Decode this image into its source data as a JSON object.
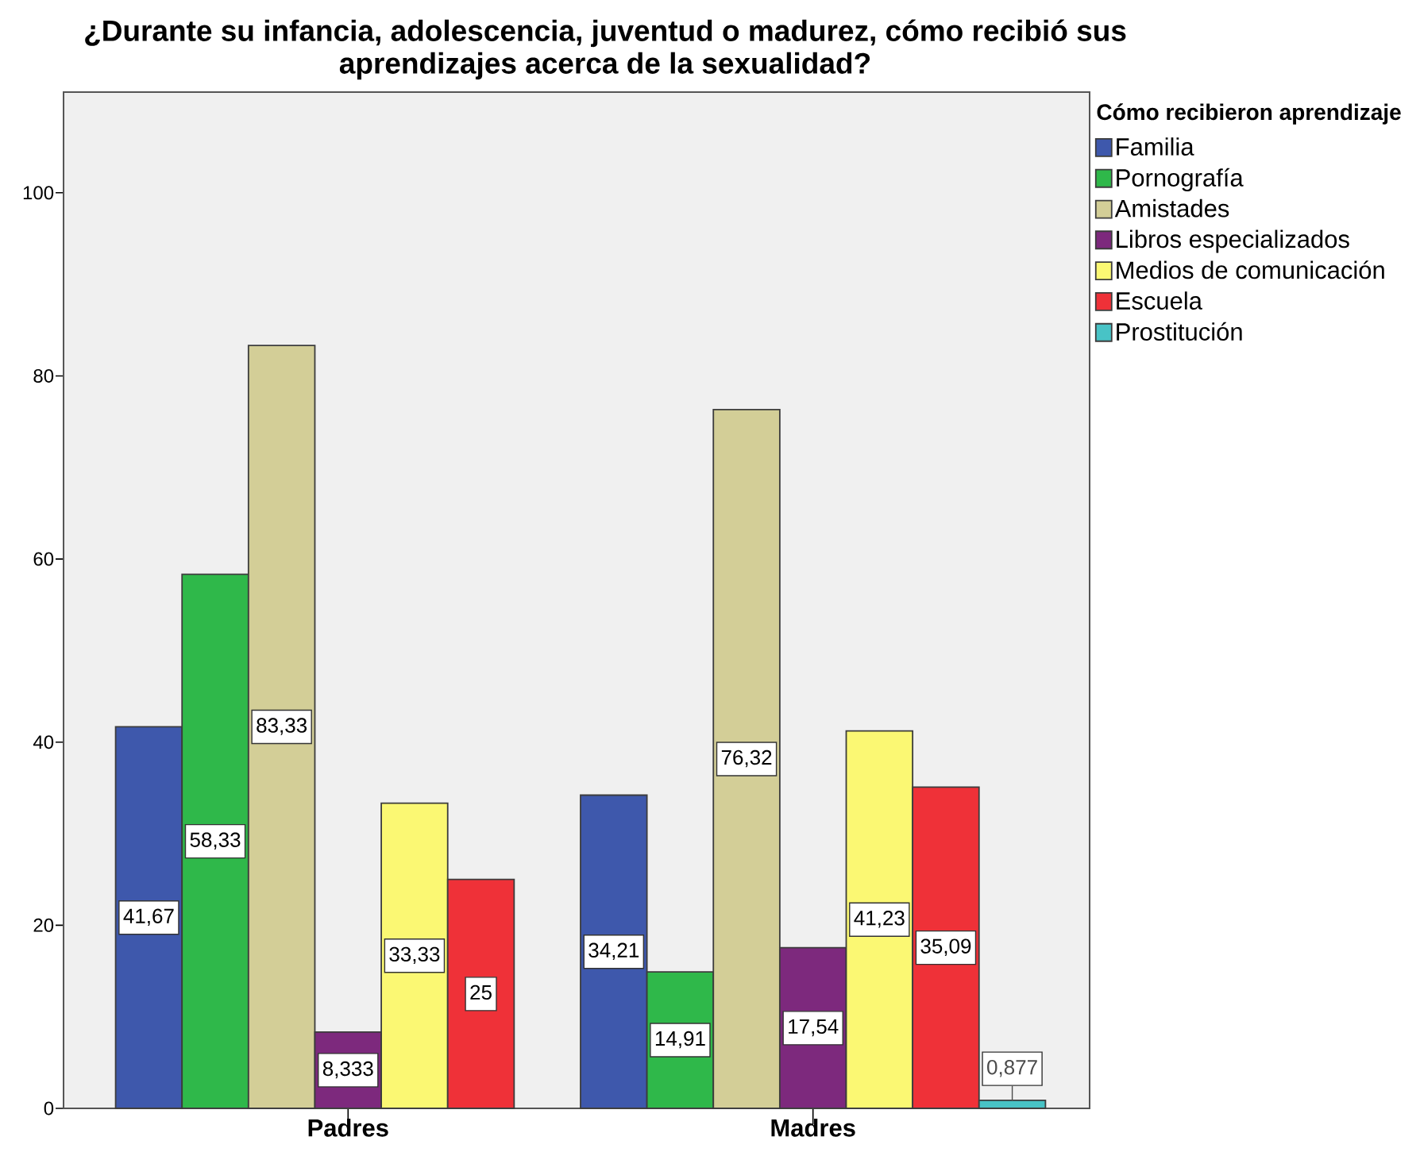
{
  "chart_data": {
    "type": "bar",
    "title": "¿Durante su infancia, adolescencia, juventud o madurez, cómo recibió sus aprendizajes acerca de la sexualidad?",
    "legend_title": "Cómo recibieron aprendizaje",
    "categories": [
      "Padres",
      "Madres"
    ],
    "series": [
      {
        "name": "Familia",
        "color": "#3e58ac",
        "values": [
          41.67,
          34.21
        ],
        "value_labels": [
          "41,67",
          "34,21"
        ]
      },
      {
        "name": "Pornografía",
        "color": "#2fb84a",
        "values": [
          58.33,
          14.91
        ],
        "value_labels": [
          "58,33",
          "14,91"
        ]
      },
      {
        "name": "Amistades",
        "color": "#d3ce97",
        "values": [
          83.33,
          76.32
        ],
        "value_labels": [
          "83,33",
          "76,32"
        ]
      },
      {
        "name": "Libros especializados",
        "color": "#7d297d",
        "values": [
          8.333,
          17.54
        ],
        "value_labels": [
          "8,333",
          "17,54"
        ]
      },
      {
        "name": "Medios de comunicación",
        "color": "#fbf873",
        "values": [
          33.33,
          41.23
        ],
        "value_labels": [
          "33,33",
          "41,23"
        ]
      },
      {
        "name": "Escuela",
        "color": "#ef3138",
        "values": [
          25,
          35.09
        ],
        "value_labels": [
          "25",
          "35,09"
        ]
      },
      {
        "name": "Prostitución",
        "color": "#48c3c6",
        "values": [
          null,
          0.877
        ],
        "value_labels": [
          null,
          "0,877"
        ]
      }
    ],
    "ylim": [
      0,
      111
    ],
    "yticks": [
      0,
      20,
      40,
      60,
      80,
      100
    ],
    "legend": "right"
  }
}
